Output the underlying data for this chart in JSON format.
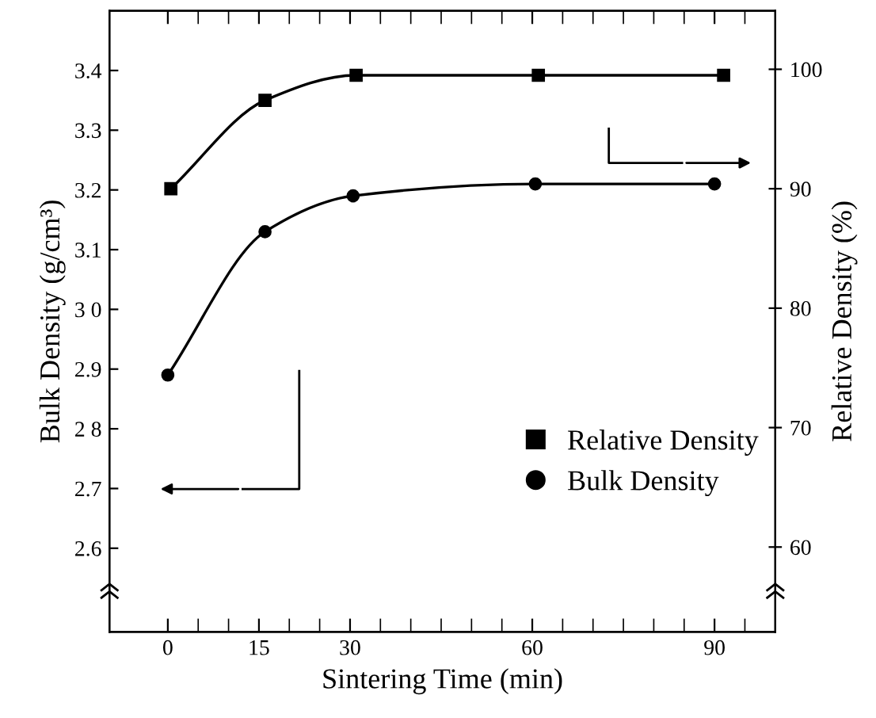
{
  "chart_data": {
    "type": "line",
    "xlabel": "Sintering Time (min)",
    "ylabel": "Bulk Density (g/cm³)",
    "y2label": "Relative Density (%)",
    "xlim": [
      -9.6,
      100
    ],
    "xticks": [
      0,
      15,
      30,
      60,
      90
    ],
    "ylim": [
      2.46,
      3.5
    ],
    "yticks": [
      {
        "value": 2.6,
        "label": "2.6"
      },
      {
        "value": 2.7,
        "label": "2.7"
      },
      {
        "value": 2.8,
        "label": "2 8"
      },
      {
        "value": 2.9,
        "label": "2.9"
      },
      {
        "value": 3.0,
        "label": "3 0"
      },
      {
        "value": 3.1,
        "label": "3.1"
      },
      {
        "value": 3.2,
        "label": "3.2"
      },
      {
        "value": 3.3,
        "label": "3.3"
      },
      {
        "value": 3.4,
        "label": "3.4"
      }
    ],
    "y2lim": [
      52.9,
      104.9
    ],
    "y2ticks": [
      60,
      70,
      80,
      90,
      100
    ],
    "series": [
      {
        "name": "Relative Density",
        "color": "#000000",
        "marker": "square",
        "axis": "y2",
        "x": [
          0.5,
          16,
          31,
          61,
          91.5
        ],
        "values": [
          90,
          97.4,
          99.5,
          99.5,
          99.5
        ]
      },
      {
        "name": "Bulk Density",
        "color": "#000000",
        "marker": "circle",
        "axis": "y",
        "x": [
          0,
          16,
          30.5,
          60.5,
          90
        ],
        "values": [
          2.89,
          3.13,
          3.19,
          3.21,
          3.21
        ]
      }
    ],
    "legend": "bottom right",
    "grid": false,
    "line_style": "solid"
  }
}
